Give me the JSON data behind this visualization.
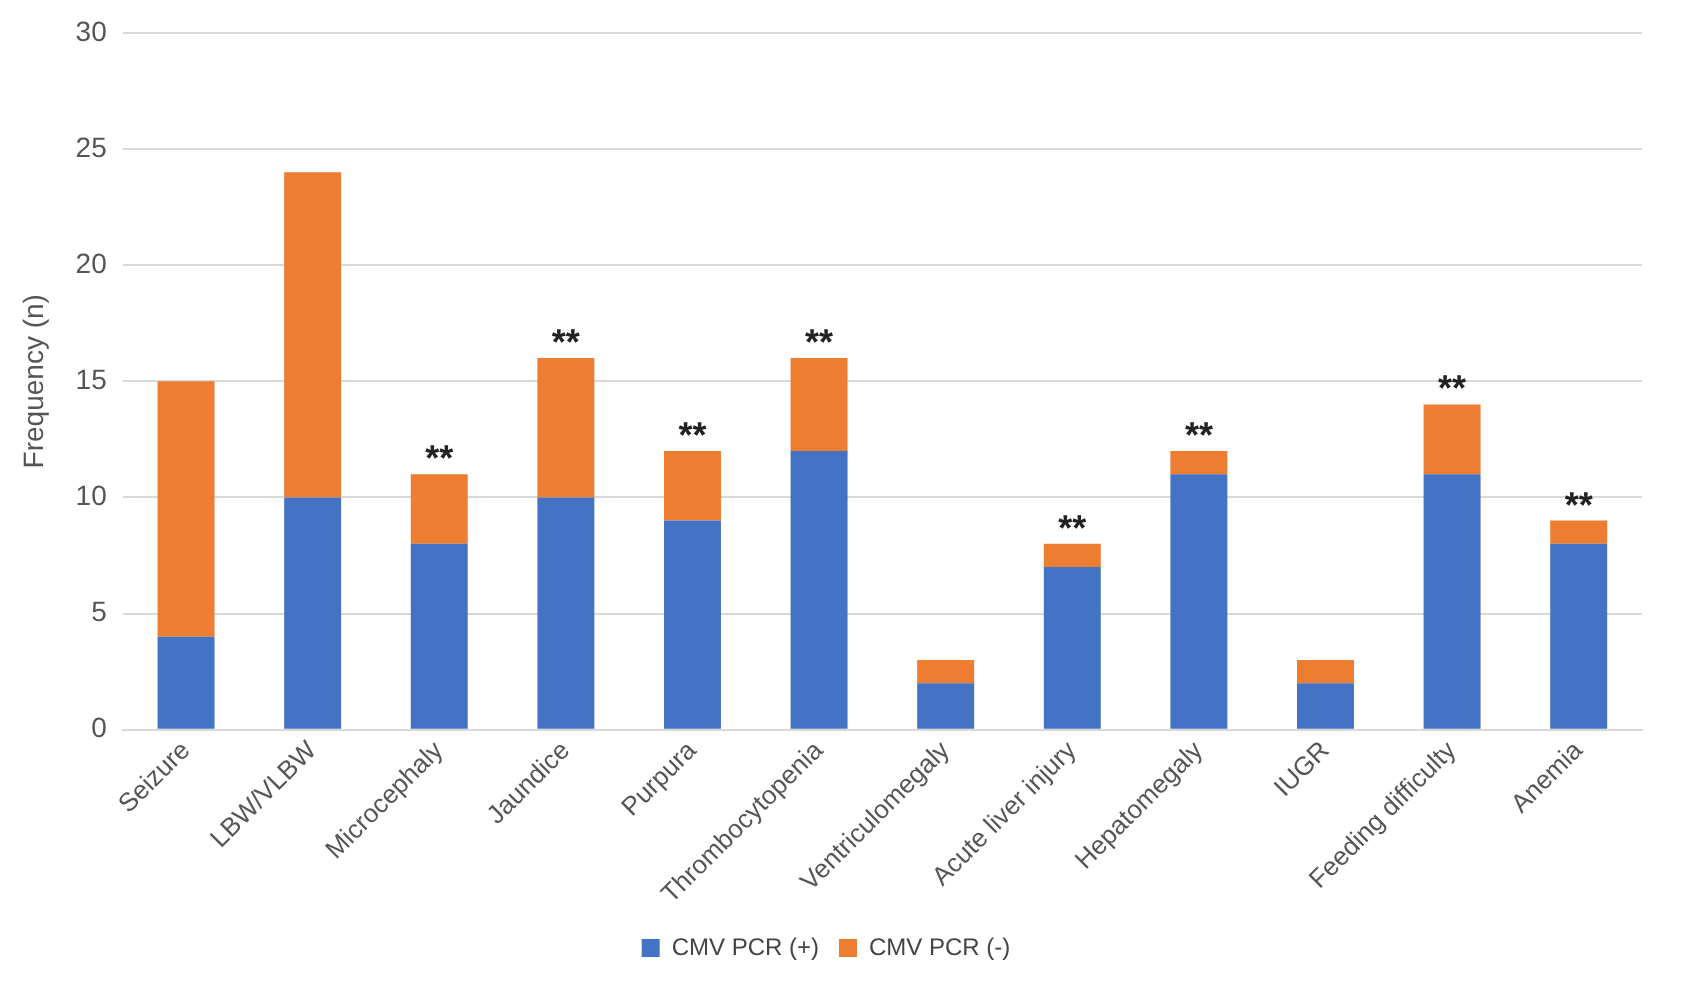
{
  "chart_data": {
    "type": "bar",
    "stacked": true,
    "ylabel": "Frequency (n)",
    "categories": [
      "Seizure",
      "LBW/VLBW",
      "Microcephaly",
      "Jaundice",
      "Purpura",
      "Thrombocytopenia",
      "Ventriculomegaly",
      "Acute liver injury",
      "Hepatomegaly",
      "IUGR",
      "Feeding difficulty",
      "Anemia"
    ],
    "series": [
      {
        "name": "CMV PCR (+)",
        "color": "#4472c4",
        "values": [
          4,
          10,
          8,
          10,
          9,
          12,
          2,
          7,
          11,
          2,
          11,
          8
        ]
      },
      {
        "name": "CMV PCR (-)",
        "color": "#ed7d31",
        "values": [
          11,
          14,
          3,
          6,
          3,
          4,
          1,
          1,
          1,
          1,
          3,
          1
        ]
      }
    ],
    "ylim": [
      0,
      30
    ],
    "yticks": [
      0,
      5,
      10,
      15,
      20,
      25,
      30
    ],
    "grid": "y",
    "legend": "bottom",
    "annotations": [
      {
        "text": "**",
        "x": "Microcephaly",
        "y": 11
      },
      {
        "text": "**",
        "x": "Jaundice",
        "y": 16
      },
      {
        "text": "**",
        "x": "Purpura",
        "y": 12
      },
      {
        "text": "**",
        "x": "Thrombocytopenia",
        "y": 16
      },
      {
        "text": "**",
        "x": "Acute liver injury",
        "y": 8
      },
      {
        "text": "**",
        "x": "Hepatomegaly",
        "y": 12
      },
      {
        "text": "**",
        "x": "Feeding difficulty",
        "y": 14
      },
      {
        "text": "**",
        "x": "Anemia",
        "y": 9
      }
    ]
  }
}
